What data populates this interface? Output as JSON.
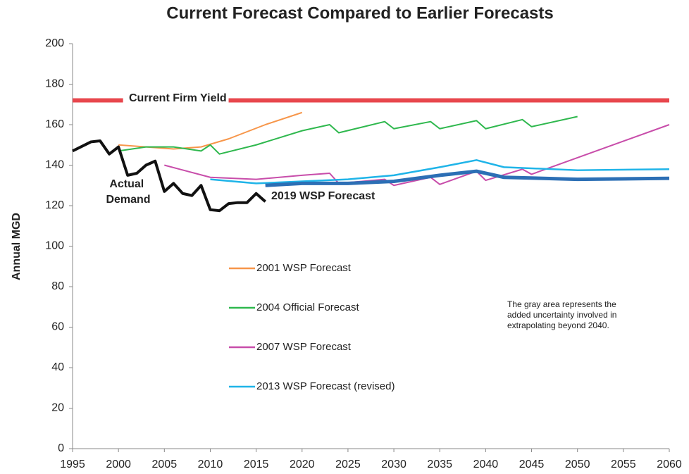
{
  "chart_data": {
    "type": "line",
    "title": "Current Forecast Compared to Earlier Forecasts",
    "y_label": "Annual MGD",
    "xlim": [
      1995,
      2060
    ],
    "xticks": [
      1995,
      2000,
      2005,
      2010,
      2015,
      2020,
      2025,
      2030,
      2035,
      2040,
      2045,
      2050,
      2055,
      2060
    ],
    "ylim": [
      0,
      200
    ],
    "yticks": [
      0,
      20,
      40,
      60,
      80,
      100,
      120,
      140,
      160,
      180,
      200
    ],
    "grid": false,
    "note": [
      "The gray area represents the",
      "added uncertainty involved in",
      "extrapolating beyond 2040."
    ],
    "series": [
      {
        "name": "Current Firm Yield",
        "color": "#e8474d",
        "width": 6,
        "in_legend": false,
        "x": [
          1995,
          2000.5,
          2006,
          2012,
          2060
        ],
        "values": [
          172,
          172,
          null,
          172,
          172
        ]
      },
      {
        "name": "2001 WSP Forecast",
        "color": "#f7964a",
        "width": 2,
        "in_legend": true,
        "x": [
          2000,
          2003,
          2006,
          2009,
          2012,
          2016,
          2020
        ],
        "values": [
          150,
          149,
          148,
          149,
          153,
          160,
          166
        ]
      },
      {
        "name": "2004 Official Forecast",
        "color": "#2fb84e",
        "width": 2,
        "in_legend": true,
        "x": [
          2000,
          2003,
          2006,
          2009,
          2010,
          2011,
          2015,
          2020,
          2023,
          2024,
          2029,
          2030,
          2034,
          2035,
          2039,
          2040,
          2044,
          2045,
          2050
        ],
        "values": [
          147,
          149,
          149,
          147,
          150,
          145.5,
          150,
          157,
          160,
          156,
          161.5,
          158,
          161.5,
          158,
          162,
          158,
          162.5,
          159,
          164
        ]
      },
      {
        "name": "2007 WSP Forecast",
        "color": "#c84daa",
        "width": 2,
        "in_legend": true,
        "x": [
          2005,
          2010,
          2015,
          2020,
          2023,
          2024,
          2029,
          2030,
          2034,
          2035,
          2039,
          2040,
          2044,
          2045,
          2060
        ],
        "values": [
          140,
          134,
          133,
          135,
          136,
          131,
          133,
          130,
          134,
          130.5,
          137,
          132.5,
          138,
          135.5,
          160
        ]
      },
      {
        "name": "2013 WSP Forecast (revised)",
        "color": "#1fb4e8",
        "width": 2.5,
        "in_legend": true,
        "x": [
          2010,
          2015,
          2020,
          2025,
          2030,
          2035,
          2039,
          2042,
          2050,
          2060
        ],
        "values": [
          133,
          131,
          132,
          133,
          135,
          139,
          142.5,
          139,
          137.5,
          138
        ]
      },
      {
        "name": "2019 WSP Forecast",
        "color": "#2c6fb5",
        "width": 5,
        "in_legend": false,
        "x": [
          2016,
          2020,
          2025,
          2030,
          2035,
          2039,
          2042,
          2050,
          2060
        ],
        "values": [
          130,
          131,
          131,
          132,
          135,
          137,
          134,
          133,
          133.5
        ]
      },
      {
        "name": "Actual Demand",
        "color": "#111111",
        "width": 4,
        "in_legend": false,
        "x": [
          1995,
          1997,
          1998,
          1999,
          2000,
          2001,
          2002,
          2003,
          2004,
          2005,
          2006,
          2007,
          2008,
          2009,
          2010,
          2011,
          2012,
          2013,
          2014,
          2015,
          2016
        ],
        "values": [
          147,
          151.5,
          152,
          145.5,
          149,
          135,
          136,
          140,
          142,
          127,
          131,
          126,
          125,
          130,
          118,
          117.5,
          121,
          121.5,
          121.5,
          126,
          122
        ]
      }
    ]
  }
}
